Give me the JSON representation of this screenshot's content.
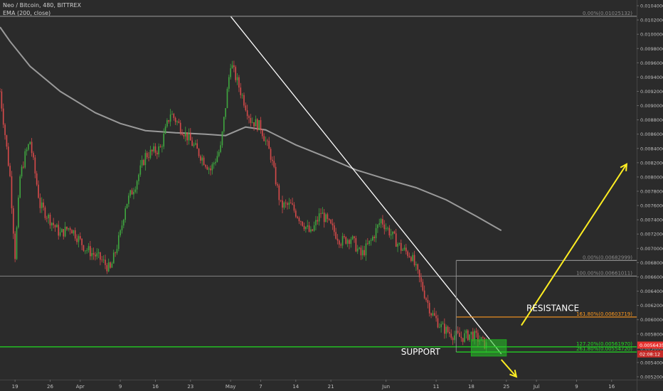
{
  "header": {
    "title": "Neo / Bitcoin, 480, BITTREX",
    "indicator": "EMA (200, close)"
  },
  "colors": {
    "background": "#2b2b2b",
    "up": "#3fa53f",
    "down": "#d44a4a",
    "ema": "#9a9a9a",
    "trend": "#ffffff",
    "support": "#22dd22",
    "resistance": "#ff9a1f",
    "arrow": "#ffee22",
    "price_tag": "#e8322f"
  },
  "chart_data": {
    "type": "candlestick",
    "y_axis": {
      "ylim": [
        0.00516,
        0.01048
      ],
      "ticks": [
        "0.01040000",
        "0.01020000",
        "0.01000000",
        "0.00980000",
        "0.00960000",
        "0.00940000",
        "0.00920000",
        "0.00900000",
        "0.00880000",
        "0.00860000",
        "0.00840000",
        "0.00820000",
        "0.00800000",
        "0.00780000",
        "0.00760000",
        "0.00740000",
        "0.00720000",
        "0.00700000",
        "0.00680000",
        "0.00660000",
        "0.00640000",
        "0.00620000",
        "0.00600000",
        "0.00580000",
        "0.00560000",
        "0.00540000",
        "0.00520000"
      ]
    },
    "x_axis": {
      "xlim": [
        "2018-03-16",
        "2018-07-21"
      ],
      "ticks": [
        {
          "date": "2018-03-19",
          "label": "19"
        },
        {
          "date": "2018-03-26",
          "label": "26"
        },
        {
          "date": "2018-04-01",
          "label": "Apr"
        },
        {
          "date": "2018-04-09",
          "label": "9"
        },
        {
          "date": "2018-04-16",
          "label": "16"
        },
        {
          "date": "2018-04-23",
          "label": "23"
        },
        {
          "date": "2018-05-01",
          "label": "May"
        },
        {
          "date": "2018-05-07",
          "label": "7"
        },
        {
          "date": "2018-05-14",
          "label": "14"
        },
        {
          "date": "2018-05-21",
          "label": "21"
        },
        {
          "date": "2018-06-01",
          "label": "Jun"
        },
        {
          "date": "2018-06-11",
          "label": "11"
        },
        {
          "date": "2018-06-18",
          "label": "18"
        },
        {
          "date": "2018-06-25",
          "label": "25"
        },
        {
          "date": "2018-07-01",
          "label": "Jul"
        },
        {
          "date": "2018-07-09",
          "label": "9"
        },
        {
          "date": "2018-07-16",
          "label": "16"
        }
      ]
    },
    "price_path": [
      [
        "2018-03-16",
        0.0092
      ],
      [
        "2018-03-17",
        0.0086
      ],
      [
        "2018-03-18",
        0.008
      ],
      [
        "2018-03-19",
        0.0069
      ],
      [
        "2018-03-20",
        0.008
      ],
      [
        "2018-03-21",
        0.0083
      ],
      [
        "2018-03-22",
        0.0085
      ],
      [
        "2018-03-24",
        0.0076
      ],
      [
        "2018-03-26",
        0.0074
      ],
      [
        "2018-03-28",
        0.0072
      ],
      [
        "2018-03-30",
        0.0073
      ],
      [
        "2018-04-02",
        0.007
      ],
      [
        "2018-04-05",
        0.00685
      ],
      [
        "2018-04-07",
        0.0067
      ],
      [
        "2018-04-09",
        0.0072
      ],
      [
        "2018-04-10",
        0.0076
      ],
      [
        "2018-04-12",
        0.0079
      ],
      [
        "2018-04-14",
        0.0083
      ],
      [
        "2018-04-17",
        0.0084
      ],
      [
        "2018-04-19",
        0.0089
      ],
      [
        "2018-04-21",
        0.0087
      ],
      [
        "2018-04-23",
        0.0085
      ],
      [
        "2018-04-25",
        0.0083
      ],
      [
        "2018-04-27",
        0.0081
      ],
      [
        "2018-04-29",
        0.0084
      ],
      [
        "2018-05-01",
        0.0096
      ],
      [
        "2018-05-03",
        0.0092
      ],
      [
        "2018-05-05",
        0.0088
      ],
      [
        "2018-05-07",
        0.0087
      ],
      [
        "2018-05-09",
        0.0083
      ],
      [
        "2018-05-11",
        0.0076
      ],
      [
        "2018-05-13",
        0.0076
      ],
      [
        "2018-05-15",
        0.0074
      ],
      [
        "2018-05-17",
        0.0072
      ],
      [
        "2018-05-19",
        0.0075
      ],
      [
        "2018-05-21",
        0.0073
      ],
      [
        "2018-05-23",
        0.0071
      ],
      [
        "2018-05-25",
        0.00715
      ],
      [
        "2018-05-27",
        0.0069
      ],
      [
        "2018-05-29",
        0.0071
      ],
      [
        "2018-05-31",
        0.0074
      ],
      [
        "2018-06-02",
        0.0072
      ],
      [
        "2018-06-04",
        0.007
      ],
      [
        "2018-06-06",
        0.0069
      ],
      [
        "2018-06-08",
        0.0065
      ],
      [
        "2018-06-10",
        0.0061
      ],
      [
        "2018-06-12",
        0.0059
      ],
      [
        "2018-06-14",
        0.0058
      ],
      [
        "2018-06-16",
        0.00575
      ],
      [
        "2018-06-18",
        0.0058
      ],
      [
        "2018-06-20",
        0.0057
      ],
      [
        "2018-06-21",
        0.00564
      ]
    ],
    "ema200": [
      [
        "2018-03-16",
        0.0101
      ],
      [
        "2018-03-18",
        0.0099
      ],
      [
        "2018-03-22",
        0.00955
      ],
      [
        "2018-03-28",
        0.0092
      ],
      [
        "2018-04-04",
        0.0089
      ],
      [
        "2018-04-09",
        0.00875
      ],
      [
        "2018-04-14",
        0.00865
      ],
      [
        "2018-04-20",
        0.00862
      ],
      [
        "2018-04-26",
        0.0086
      ],
      [
        "2018-04-30",
        0.00858
      ],
      [
        "2018-05-04",
        0.0087
      ],
      [
        "2018-05-08",
        0.00866
      ],
      [
        "2018-05-14",
        0.00845
      ],
      [
        "2018-05-20",
        0.00828
      ],
      [
        "2018-05-26",
        0.0081
      ],
      [
        "2018-06-01",
        0.00797
      ],
      [
        "2018-06-07",
        0.00785
      ],
      [
        "2018-06-13",
        0.00768
      ],
      [
        "2018-06-19",
        0.00745
      ],
      [
        "2018-06-24",
        0.00725
      ]
    ],
    "trendline": {
      "from": [
        "2018-05-01",
        0.01025132
      ],
      "to": [
        "2018-06-24",
        0.00552
      ]
    },
    "range_lines": [
      {
        "price": 0.01025132,
        "from": "2018-03-16",
        "to": "2018-07-21",
        "color": "#7a7a7a"
      },
      {
        "price": 0.00661011,
        "from": "2018-03-16",
        "to": "2018-07-21",
        "color": "#7a7a7a"
      }
    ],
    "fib_levels": [
      {
        "label": "0.00%(0.01025132)",
        "price": 0.01025132,
        "color": "#8a8a8a",
        "from": "2018-03-16"
      },
      {
        "label": "0.00%(0.00682999)",
        "price": 0.00682999,
        "color": "#8a8a8a",
        "from": "2018-06-15"
      },
      {
        "label": "100.00%(0.00661011)",
        "price": 0.00661011,
        "color": "#8a8a8a",
        "from": "2018-06-15"
      },
      {
        "label": "161.80%(0.00603719)",
        "price": 0.00603719,
        "color": "#ff9a1f",
        "from": "2018-06-15"
      },
      {
        "label": "127.20%(0.00561970)",
        "price": 0.0056197,
        "color": "#22dd22",
        "from": "2018-03-16"
      },
      {
        "label": "261.80%(0.00554720)",
        "price": 0.0055472,
        "color": "#22dd22",
        "from": "2018-06-15"
      }
    ],
    "support_zone": {
      "from": "2018-06-18",
      "to": "2018-06-25",
      "top": 0.00572,
      "bottom": 0.00549
    },
    "annotations": [
      {
        "text": "RESISTANCE",
        "date": "2018-06-29",
        "price": 0.00612
      },
      {
        "text": "SUPPORT",
        "date": "2018-06-04",
        "price": 0.00551
      }
    ],
    "arrows": [
      {
        "from": [
          "2018-06-28",
          0.00592
        ],
        "to": [
          "2018-07-19",
          0.00818
        ]
      },
      {
        "from": [
          "2018-06-24",
          0.00544
        ],
        "to": [
          "2018-06-27",
          0.0052
        ]
      }
    ],
    "price_tags": [
      {
        "price": 0.00564358,
        "text": "0.00564358",
        "color": "#e8322f"
      },
      {
        "price": 0.00552,
        "text": "02:08:12",
        "color": "#c62a27"
      }
    ]
  }
}
